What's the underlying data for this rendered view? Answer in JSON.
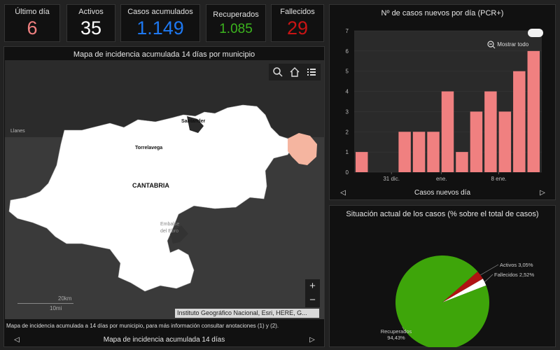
{
  "kpis": [
    {
      "label": "Último día",
      "value": "6",
      "color": "#f08080"
    },
    {
      "label": "Activos",
      "value": "35",
      "color": "#ffffff"
    },
    {
      "label": "Casos acumulados",
      "value": "1.149",
      "color": "#1e78f0"
    },
    {
      "label": "Recuperados",
      "value": "1.085",
      "color": "#3cb41e"
    },
    {
      "label": "Fallecidos",
      "value": "29",
      "color": "#c81414"
    }
  ],
  "map": {
    "title": "Mapa de incidencia acumulada 14 días por municipio",
    "labels": {
      "region": "CANTABRIA",
      "santander": "Santander",
      "torrelavega": "Torrelavega",
      "llanes": "Llanes",
      "embalse": "Embalse del Ebro"
    },
    "scale": {
      "km": "20km",
      "mi": "10mi"
    },
    "attribution": "Instituto Geográfico Nacional, Esri, HERE, G...",
    "note": "Mapa de incidencia acumulada a 14 días por municipio, para más información consultar anotaciones (1) y (2).",
    "nav_label": "Mapa de incidencia acumulada 14 días",
    "zoom_in": "+",
    "zoom_out": "−",
    "icons": [
      "search-icon",
      "home-icon",
      "legend-icon"
    ]
  },
  "bar_panel": {
    "title": "Nº de casos nuevos por día (PCR+)",
    "show_all": "Mostrar todo",
    "nav_label": "Casos nuevos día"
  },
  "pie_panel": {
    "title": "Situación actual de los casos (% sobre el total de casos)"
  },
  "chart_data": [
    {
      "type": "bar",
      "title": "Nº de casos nuevos por día (PCR+)",
      "xlabel": "Casos nuevos día",
      "ylim": [
        0,
        7
      ],
      "yticks": [
        0,
        1,
        2,
        3,
        4,
        5,
        6,
        7
      ],
      "xticks": [
        "31 dic.",
        "ene.",
        "8 ene."
      ],
      "values": [
        1,
        0,
        0,
        2,
        2,
        2,
        4,
        1,
        3,
        4,
        3,
        5,
        6
      ],
      "color": "#f08080"
    },
    {
      "type": "pie",
      "title": "Situación actual de los casos (% sobre el total de casos)",
      "slices": [
        {
          "label": "Recuperados",
          "value": 94.43,
          "display": "94,43%",
          "color": "#3ea50a"
        },
        {
          "label": "Activos",
          "value": 3.05,
          "display": "3,05%",
          "color": "#b01313"
        },
        {
          "label": "Fallecidos",
          "value": 2.52,
          "display": "2,52%",
          "color": "#ffffff"
        }
      ]
    }
  ]
}
